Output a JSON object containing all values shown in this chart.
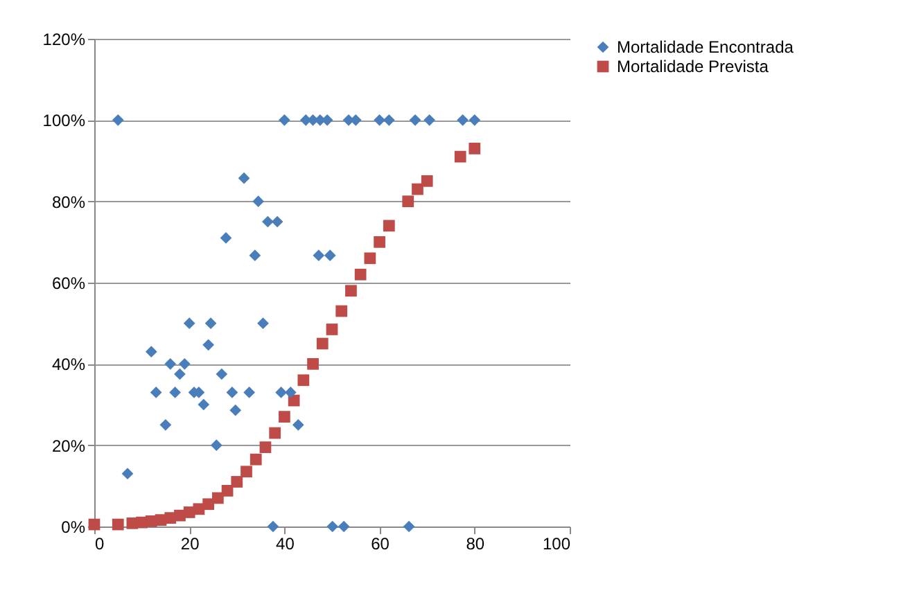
{
  "chart_data": {
    "type": "scatter",
    "xlim": [
      0,
      100
    ],
    "xticks": [
      0,
      20,
      40,
      60,
      80,
      100
    ],
    "ylim": [
      0,
      120
    ],
    "yticks": [
      {
        "value": 0,
        "label": "0%"
      },
      {
        "value": 20,
        "label": "20%"
      },
      {
        "value": 40,
        "label": "40%"
      },
      {
        "value": 60,
        "label": "60%"
      },
      {
        "value": 80,
        "label": "80%"
      },
      {
        "value": 100,
        "label": "100%"
      },
      {
        "value": 120,
        "label": "120%"
      }
    ],
    "grid": "y",
    "legend": "right",
    "series": [
      {
        "name": "Mortalidade Encontrada",
        "color": "#4a7ebb",
        "marker": "diamond",
        "x": [
          5,
          7,
          12,
          13,
          15,
          16,
          18,
          19,
          17,
          20,
          21,
          22,
          23,
          24.5,
          24,
          25.7,
          26.8,
          27.7,
          29,
          29.7,
          31.5,
          32.6,
          33.8,
          34.5,
          35.5,
          36.5,
          38.5,
          37.6,
          40,
          39.3,
          41.3,
          42.9,
          44.5,
          46,
          47.5,
          49,
          47.2,
          49.6,
          50.1,
          52.5,
          53.5,
          55,
          60,
          62,
          66.2,
          67.5,
          70.5,
          77.5,
          80
        ],
        "values": [
          100,
          13,
          43,
          33,
          25,
          40,
          37.5,
          40,
          33,
          50,
          33,
          33,
          30,
          50,
          44.7,
          20,
          37.5,
          71,
          33,
          28.6,
          85.7,
          33,
          66.7,
          80,
          50,
          75,
          75,
          0,
          100,
          33,
          33,
          25,
          100,
          100,
          100,
          100,
          66.7,
          66.7,
          0,
          0,
          100,
          100,
          100,
          100,
          0,
          100,
          100,
          100,
          100
        ]
      },
      {
        "name": "Mortalidade Prevista",
        "color": "#be4b48",
        "marker": "square",
        "x": [
          0,
          5,
          8,
          10,
          12,
          14,
          16,
          18,
          20,
          22,
          24,
          26,
          28,
          30,
          32,
          34,
          36,
          38,
          40,
          42,
          44,
          46,
          48,
          50,
          52,
          54,
          56,
          58,
          60,
          62,
          66,
          68,
          70,
          77,
          80
        ],
        "values": [
          0.5,
          0.5,
          0.8,
          1,
          1.3,
          1.6,
          2.1,
          2.7,
          3.5,
          4.3,
          5.5,
          7,
          8.8,
          11,
          13.5,
          16.5,
          19.5,
          23,
          27,
          31,
          36,
          40,
          45,
          48.5,
          53,
          58,
          62,
          66,
          70,
          74,
          80,
          83,
          85,
          91,
          93
        ]
      }
    ]
  }
}
